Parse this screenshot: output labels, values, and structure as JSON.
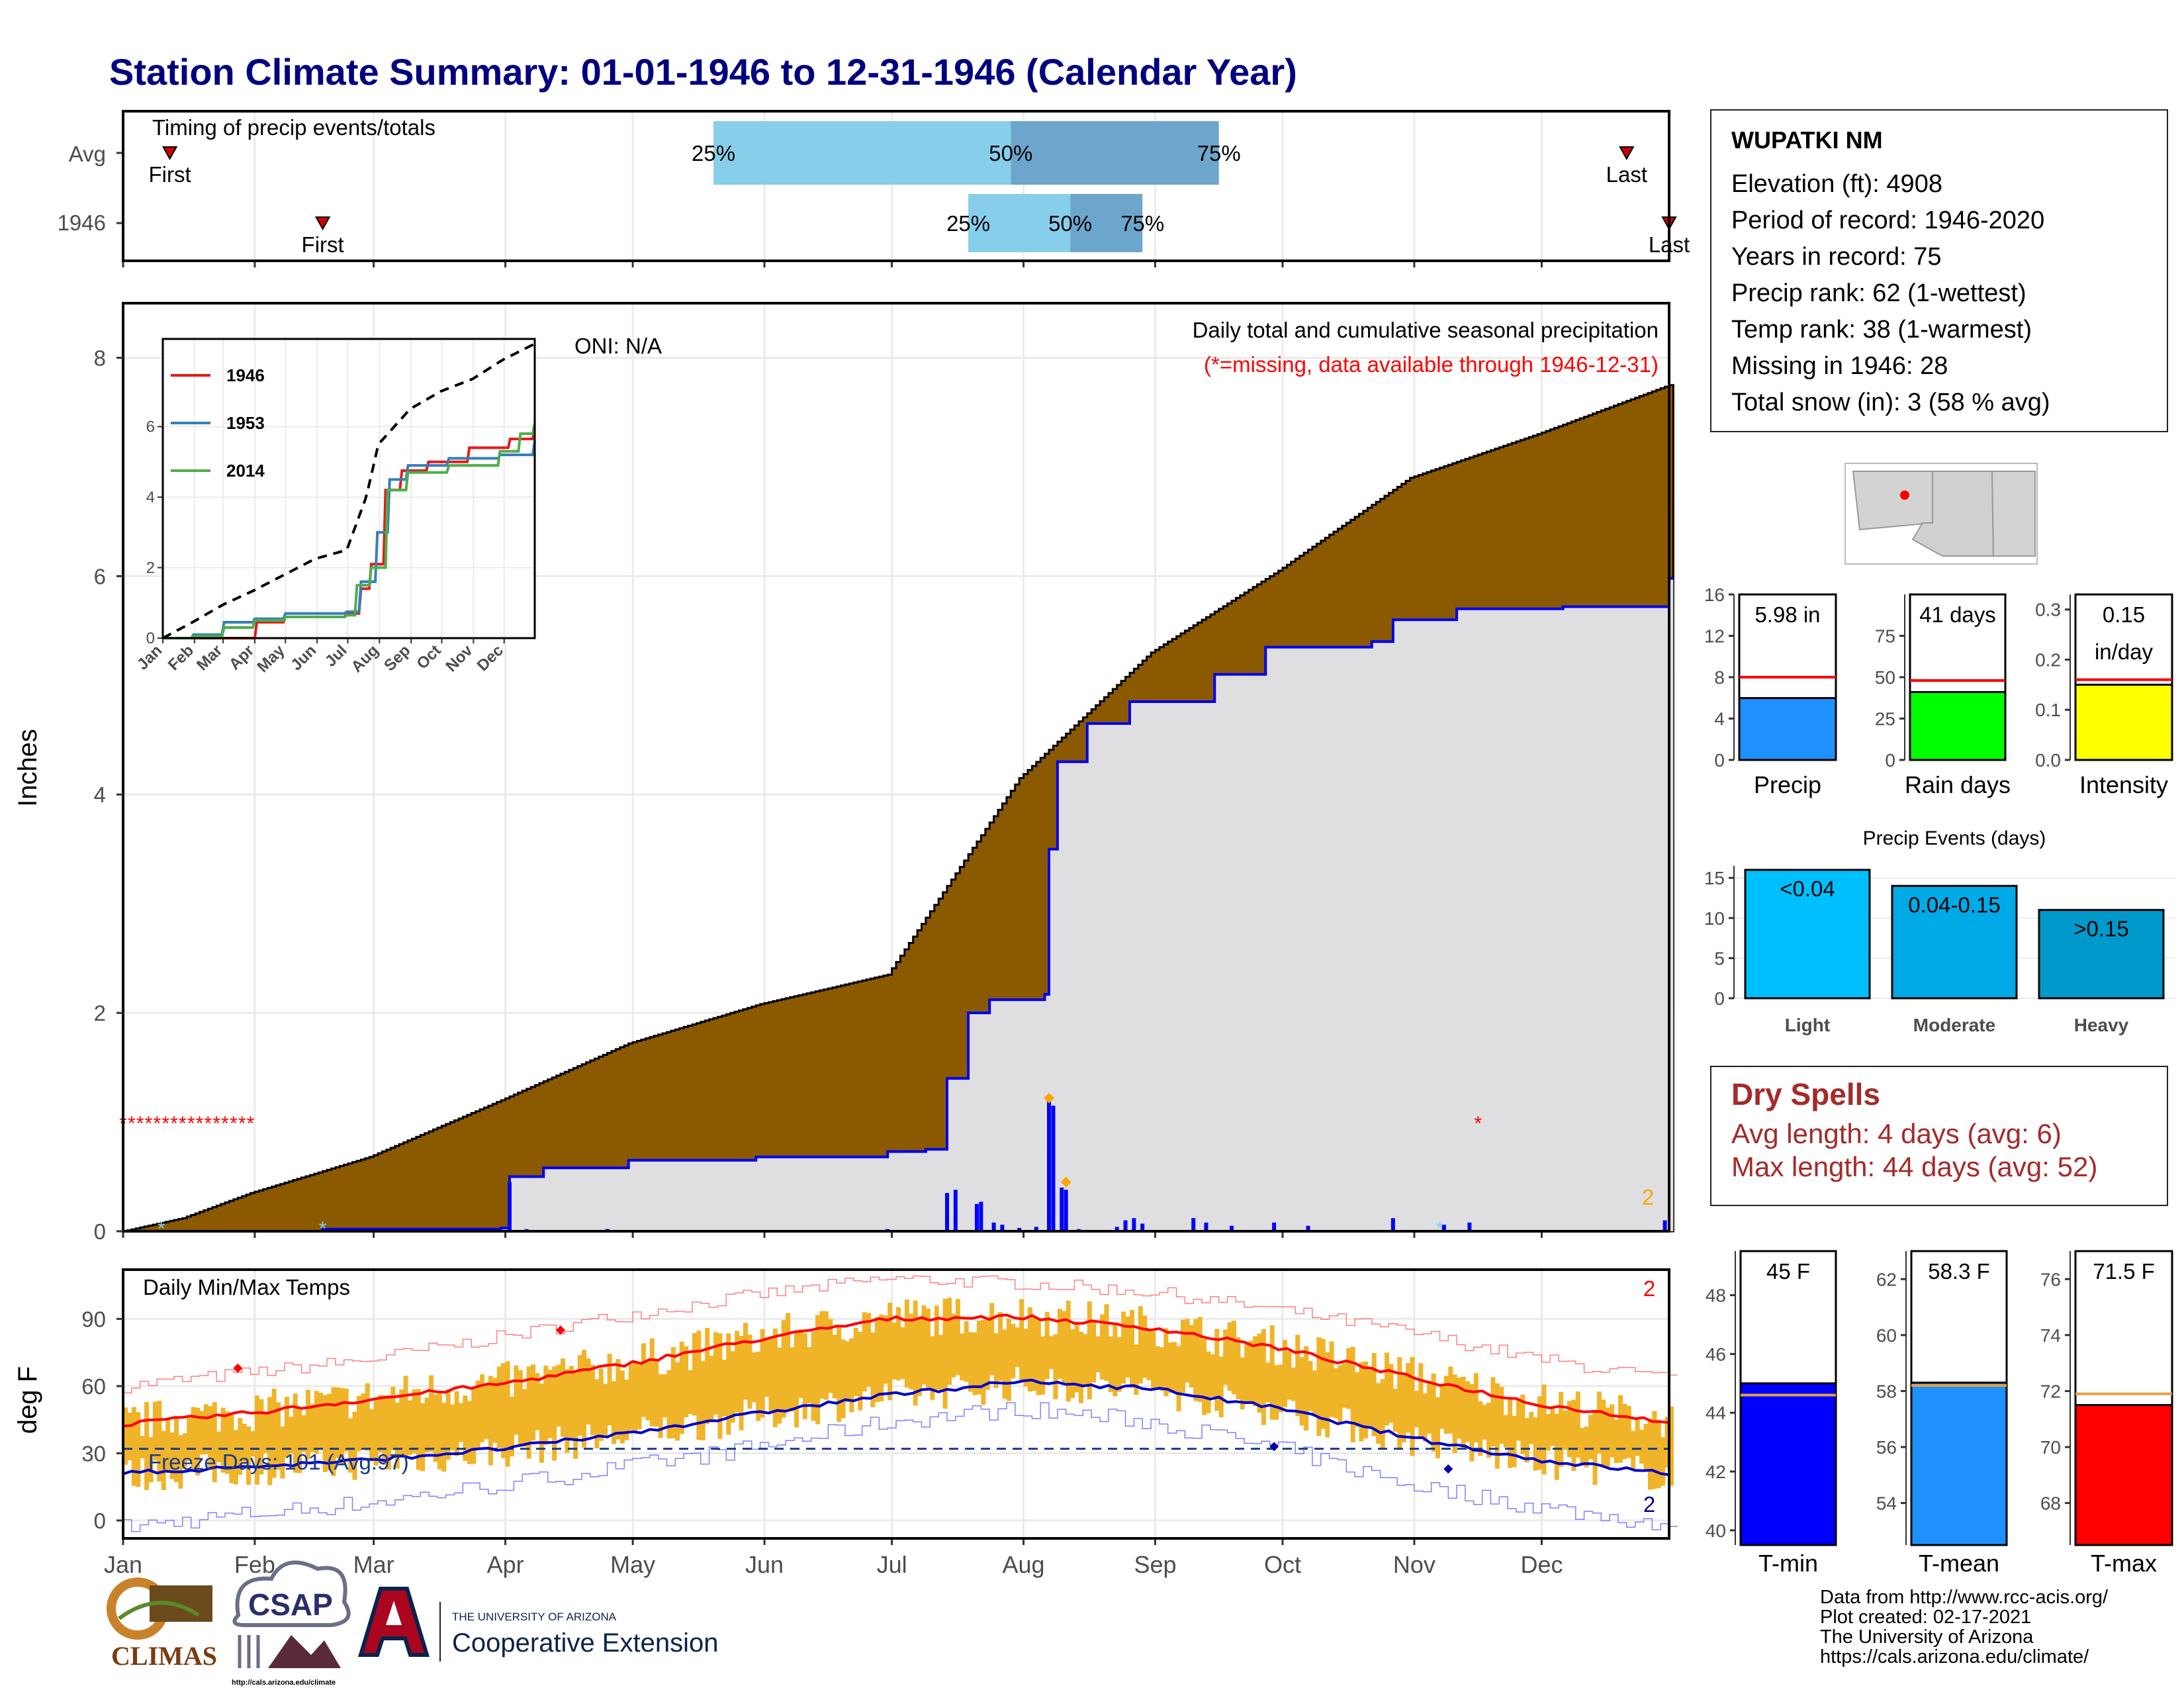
{
  "title": "Station Climate Summary: 01-01-1946 to 12-31-1946 (Calendar Year)",
  "timing": {
    "label": "Timing of precip events/totals",
    "rows": [
      "Avg",
      "1946"
    ],
    "avg": {
      "first_day": 12,
      "last_day": 355,
      "p25_day": 140,
      "p50_day": 210,
      "p75_day": 259,
      "first_label": "First",
      "last_label": "Last"
    },
    "year": {
      "first_day": 48,
      "last_day": 365,
      "p25_day": 200,
      "p50_day": 224,
      "p75_day": 241,
      "first_label": "First",
      "last_label": "Last"
    },
    "pct_labels": [
      "25%",
      "50%",
      "75%"
    ]
  },
  "main": {
    "y_label": "Inches",
    "y_ticks": [
      0,
      2,
      4,
      6,
      8
    ],
    "oni": "ONI: N/A",
    "subtitle": "Daily total and cumulative seasonal precipitation",
    "missing_note": "(*=missing, data available through 1946-12-31)",
    "corner_count": "2"
  },
  "inset": {
    "legend": [
      "1946",
      "1953",
      "2014"
    ],
    "y_ticks": [
      0,
      2,
      4,
      6
    ],
    "months": [
      "Jan",
      "Feb",
      "Mar",
      "Apr",
      "May",
      "Jun",
      "Jul",
      "Aug",
      "Sep",
      "Oct",
      "Nov",
      "Dec"
    ]
  },
  "temps": {
    "title": "Daily Min/Max Temps",
    "y_label": "deg F",
    "y_ticks": [
      0,
      30,
      60,
      90
    ],
    "freeze": "Freeze Days: 101 (Avg:97)",
    "count_max": "2",
    "count_min": "2"
  },
  "months": [
    "Jan",
    "Feb",
    "Mar",
    "Apr",
    "May",
    "Jun",
    "Jul",
    "Aug",
    "Sep",
    "Oct",
    "Nov",
    "Dec"
  ],
  "station": {
    "name": "WUPATKI NM",
    "lines": [
      "Elevation (ft): 4908",
      "Period of record: 1946-2020",
      "Years in record: 75",
      "Precip rank: 62 (1-wettest)",
      "Temp rank: 38 (1-warmest)",
      "Missing in 1946: 28",
      "Total snow (in): 3 (58 % avg)"
    ]
  },
  "dry_spells": {
    "title": "Dry Spells",
    "avg": "Avg length: 4 days (avg: 6)",
    "max": "Max length: 44 days (avg: 52)"
  },
  "credits": [
    "Data from http://www.rcc-acis.org/",
    "Plot created: 02-17-2021",
    "The University of Arizona",
    "https://cals.arizona.edu/climate/"
  ],
  "logos": {
    "climas": "CLIMAS",
    "csap": "CSAP",
    "ua_small": "THE UNIVERSITY OF ARIZONA",
    "ua_big": "Cooperative Extension",
    "csap_url": "http://cals.arizona.edu/climate"
  },
  "chart_data": [
    {
      "type": "area",
      "name": "cumulative-precipitation",
      "x_unit": "day of year",
      "ylim": [
        0,
        8.5
      ],
      "avg_cumulative": [
        [
          1,
          0
        ],
        [
          15,
          0.12
        ],
        [
          31,
          0.35
        ],
        [
          59,
          0.68
        ],
        [
          90,
          1.2
        ],
        [
          120,
          1.72
        ],
        [
          151,
          2.08
        ],
        [
          181,
          2.35
        ],
        [
          212,
          4.15
        ],
        [
          243,
          5.3
        ],
        [
          273,
          6.05
        ],
        [
          304,
          6.9
        ],
        [
          334,
          7.3
        ],
        [
          365,
          7.75
        ]
      ],
      "obs_cumulative": [
        [
          1,
          0
        ],
        [
          48,
          0.02
        ],
        [
          90,
          0.03
        ],
        [
          92,
          0.5
        ],
        [
          100,
          0.58
        ],
        [
          120,
          0.65
        ],
        [
          150,
          0.68
        ],
        [
          181,
          0.73
        ],
        [
          190,
          0.75
        ],
        [
          195,
          1.4
        ],
        [
          200,
          2.0
        ],
        [
          205,
          2.12
        ],
        [
          218,
          2.17
        ],
        [
          219,
          3.5
        ],
        [
          221,
          4.3
        ],
        [
          228,
          4.65
        ],
        [
          238,
          4.85
        ],
        [
          258,
          5.1
        ],
        [
          270,
          5.35
        ],
        [
          295,
          5.4
        ],
        [
          300,
          5.6
        ],
        [
          315,
          5.7
        ],
        [
          340,
          5.72
        ],
        [
          363,
          5.72
        ],
        [
          365,
          5.98
        ]
      ],
      "daily_bars": [
        [
          92,
          0.45
        ],
        [
          96,
          0.02
        ],
        [
          108,
          0.01
        ],
        [
          115,
          0.02
        ],
        [
          125,
          0.01
        ],
        [
          137,
          0.01
        ],
        [
          181,
          0.02
        ],
        [
          195,
          0.35
        ],
        [
          197,
          0.38
        ],
        [
          202,
          0.25
        ],
        [
          203,
          0.27
        ],
        [
          206,
          0.08
        ],
        [
          208,
          0.06
        ],
        [
          212,
          0.03
        ],
        [
          216,
          0.04
        ],
        [
          219,
          1.2
        ],
        [
          220,
          1.15
        ],
        [
          222,
          0.4
        ],
        [
          223,
          0.38
        ],
        [
          226,
          0.02
        ],
        [
          235,
          0.04
        ],
        [
          237,
          0.1
        ],
        [
          239,
          0.12
        ],
        [
          241,
          0.07
        ],
        [
          253,
          0.12
        ],
        [
          256,
          0.08
        ],
        [
          262,
          0.05
        ],
        [
          272,
          0.08
        ],
        [
          280,
          0.05
        ],
        [
          300,
          0.12
        ],
        [
          312,
          0.06
        ],
        [
          318,
          0.08
        ],
        [
          364,
          0.1
        ]
      ],
      "missing_days_start": 1,
      "missing_days_end": 31,
      "missing_marker_day": 320
    },
    {
      "type": "line",
      "name": "inset-cumulative",
      "x_unit": "day of year",
      "ylim": [
        0,
        8.5
      ],
      "series": [
        {
          "name": "1946",
          "color": "#e41a1c",
          "points": [
            [
              1,
              0
            ],
            [
              90,
              0
            ],
            [
              92,
              0.45
            ],
            [
              120,
              0.6
            ],
            [
              180,
              0.7
            ],
            [
              195,
              1.4
            ],
            [
              205,
              2.1
            ],
            [
              219,
              4.2
            ],
            [
              235,
              4.75
            ],
            [
              260,
              5.0
            ],
            [
              300,
              5.4
            ],
            [
              340,
              5.65
            ],
            [
              365,
              5.98
            ]
          ]
        },
        {
          "name": "1953",
          "color": "#377eb8",
          "points": [
            [
              1,
              0
            ],
            [
              30,
              0.1
            ],
            [
              60,
              0.45
            ],
            [
              90,
              0.55
            ],
            [
              120,
              0.7
            ],
            [
              180,
              0.75
            ],
            [
              195,
              1.6
            ],
            [
              210,
              3.0
            ],
            [
              222,
              4.5
            ],
            [
              240,
              4.9
            ],
            [
              280,
              5.1
            ],
            [
              330,
              5.2
            ],
            [
              365,
              5.6
            ]
          ]
        },
        {
          "name": "2014",
          "color": "#4daf4a",
          "points": [
            [
              1,
              0
            ],
            [
              30,
              0.05
            ],
            [
              60,
              0.3
            ],
            [
              90,
              0.5
            ],
            [
              120,
              0.6
            ],
            [
              180,
              0.65
            ],
            [
              190,
              1.5
            ],
            [
              205,
              2.0
            ],
            [
              220,
              4.2
            ],
            [
              240,
              4.7
            ],
            [
              280,
              4.9
            ],
            [
              330,
              5.3
            ],
            [
              350,
              5.8
            ],
            [
              365,
              6.1
            ]
          ]
        },
        {
          "name": "avg-max",
          "color": "#000000",
          "points": [
            [
              1,
              0
            ],
            [
              30,
              0.45
            ],
            [
              60,
              0.95
            ],
            [
              90,
              1.35
            ],
            [
              120,
              1.8
            ],
            [
              150,
              2.25
            ],
            [
              181,
              2.5
            ],
            [
              200,
              4.0
            ],
            [
              212,
              5.5
            ],
            [
              243,
              6.5
            ],
            [
              273,
              7.0
            ],
            [
              304,
              7.35
            ],
            [
              334,
              7.9
            ],
            [
              365,
              8.35
            ]
          ]
        }
      ]
    },
    {
      "type": "bar",
      "name": "precip-timing",
      "categories": [
        "Avg",
        "1946"
      ],
      "series": [
        {
          "name": "25-50",
          "values": [
            [
              140,
              210
            ],
            [
              200,
              224
            ]
          ]
        },
        {
          "name": "50-75",
          "values": [
            [
              210,
              259
            ],
            [
              224,
              241
            ]
          ]
        }
      ]
    },
    {
      "type": "bar",
      "name": "precip-total",
      "categories": [
        "Precip"
      ],
      "values": [
        5.98
      ],
      "avg": 8.0,
      "ylim": [
        0,
        16
      ],
      "y_ticks": [
        0,
        4,
        8,
        12,
        16
      ],
      "label": "5.98 in",
      "color": "#1e90ff"
    },
    {
      "type": "bar",
      "name": "rain-days",
      "categories": [
        "Rain days"
      ],
      "values": [
        41
      ],
      "avg": 48,
      "ylim": [
        0,
        100
      ],
      "y_ticks": [
        0,
        25,
        50,
        75
      ],
      "label": "41 days",
      "color": "#00ff00"
    },
    {
      "type": "bar",
      "name": "intensity",
      "categories": [
        "Intensity"
      ],
      "values": [
        0.15
      ],
      "avg": 0.16,
      "ylim": [
        0,
        0.33
      ],
      "y_ticks": [
        0.0,
        0.1,
        0.2,
        0.3
      ],
      "label1": "0.15",
      "label2": "in/day",
      "color": "#ffff00"
    },
    {
      "type": "bar",
      "name": "precip-events",
      "title": "Precip Events (days)",
      "categories": [
        "Light",
        "Moderate",
        "Heavy"
      ],
      "values": [
        16,
        14,
        11
      ],
      "bar_labels": [
        "<0.04",
        "0.04-0.15",
        ">0.15"
      ],
      "colors": [
        "#00bfff",
        "#00aae6",
        "#0099cc"
      ],
      "ylim": [
        0,
        16.5
      ],
      "y_ticks": [
        0,
        5,
        10,
        15
      ]
    },
    {
      "type": "line",
      "name": "daily-temps",
      "x_unit": "day of year",
      "ylim": [
        -5,
        112
      ],
      "avg_max": [
        [
          1,
          43
        ],
        [
          31,
          48
        ],
        [
          59,
          54
        ],
        [
          90,
          61
        ],
        [
          120,
          70
        ],
        [
          151,
          81
        ],
        [
          181,
          90
        ],
        [
          212,
          91
        ],
        [
          243,
          86
        ],
        [
          273,
          77
        ],
        [
          304,
          64
        ],
        [
          334,
          52
        ],
        [
          365,
          44
        ]
      ],
      "avg_min": [
        [
          1,
          21
        ],
        [
          31,
          24
        ],
        [
          59,
          27
        ],
        [
          90,
          32
        ],
        [
          120,
          39
        ],
        [
          151,
          48
        ],
        [
          181,
          56
        ],
        [
          212,
          62
        ],
        [
          243,
          59
        ],
        [
          273,
          50
        ],
        [
          304,
          37
        ],
        [
          334,
          27
        ],
        [
          365,
          21
        ]
      ],
      "record_max": [
        [
          1,
          60
        ],
        [
          31,
          66
        ],
        [
          59,
          72
        ],
        [
          90,
          82
        ],
        [
          120,
          92
        ],
        [
          151,
          101
        ],
        [
          181,
          108
        ],
        [
          212,
          106
        ],
        [
          243,
          102
        ],
        [
          273,
          94
        ],
        [
          304,
          84
        ],
        [
          334,
          72
        ],
        [
          365,
          63
        ]
      ],
      "record_min": [
        [
          1,
          -3
        ],
        [
          31,
          3
        ],
        [
          59,
          8
        ],
        [
          90,
          16
        ],
        [
          120,
          24
        ],
        [
          151,
          33
        ],
        [
          181,
          44
        ],
        [
          212,
          50
        ],
        [
          243,
          44
        ],
        [
          273,
          32
        ],
        [
          304,
          16
        ],
        [
          334,
          6
        ],
        [
          365,
          -2
        ]
      ],
      "freeze_line": 32,
      "record_marker_days": [
        [
          28,
          68
        ],
        [
          104,
          85
        ]
      ]
    },
    {
      "type": "bar",
      "name": "t-min",
      "categories": [
        "T-min"
      ],
      "values": [
        45
      ],
      "avg": 44.6,
      "ylim": [
        39.5,
        49.5
      ],
      "y_ticks": [
        40,
        42,
        44,
        46,
        48
      ],
      "label": "45 F",
      "color": "#0000ff"
    },
    {
      "type": "bar",
      "name": "t-mean",
      "categories": [
        "T-mean"
      ],
      "values": [
        58.3
      ],
      "avg": 58.2,
      "ylim": [
        52.5,
        63
      ],
      "y_ticks": [
        54,
        56,
        58,
        60,
        62
      ],
      "label": "58.3 F",
      "color": "#1e90ff"
    },
    {
      "type": "bar",
      "name": "t-max",
      "categories": [
        "T-max"
      ],
      "values": [
        71.5
      ],
      "avg": 71.9,
      "ylim": [
        66.5,
        77
      ],
      "y_ticks": [
        68,
        70,
        72,
        74,
        76
      ],
      "label": "71.5 F",
      "color": "#ff0000"
    }
  ]
}
